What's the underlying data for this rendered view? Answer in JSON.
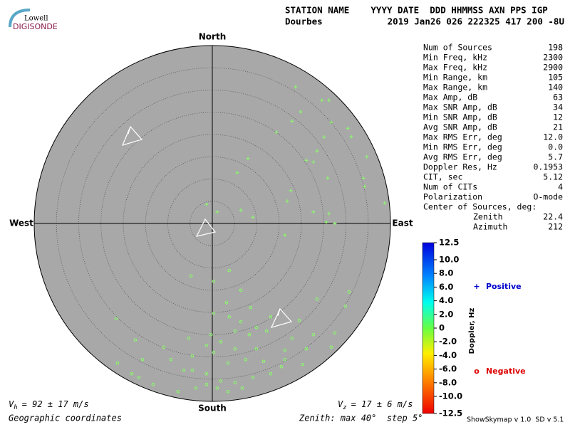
{
  "header": {
    "logo_top": "Lowell",
    "logo_bottom": "DIGISONDE",
    "columns": "STATION NAME    YYYY DATE  DDD HHMMSS AXN PPS IGP",
    "station": "Dourbes",
    "values": "2019 Jan26 026 222325 417 200 -8U"
  },
  "stats": [
    [
      "Num of Sources",
      "198"
    ],
    [
      "Min Freq, kHz",
      "2300"
    ],
    [
      "Max Freq, kHz",
      "2900"
    ],
    [
      "Min Range, km",
      "105"
    ],
    [
      "Max Range, km",
      "140"
    ],
    [
      "Max Amp, dB",
      "63"
    ],
    [
      "Max SNR Amp, dB",
      "34"
    ],
    [
      "Min SNR Amp, dB",
      "12"
    ],
    [
      "Avg SNR Amp, dB",
      "21"
    ],
    [
      "Max RMS Err, deg",
      "12.0"
    ],
    [
      "Min RMS Err, deg",
      "0.0"
    ],
    [
      "Avg RMS Err, deg",
      "5.7"
    ],
    [
      "Doppler Res, Hz",
      "0.1953"
    ],
    [
      "CIT, sec",
      "5.12"
    ],
    [
      "Num of CITs",
      "4"
    ],
    [
      "Polarization",
      "O-mode"
    ]
  ],
  "center": {
    "title": "Center of Sources, deg:",
    "rows": [
      [
        "Zenith",
        "22.4"
      ],
      [
        "Azimuth",
        "212"
      ]
    ]
  },
  "footer": {
    "vh": {
      "symbol": "V",
      "sub": "h",
      "text": "= 92 ± 17 m/s"
    },
    "vz": {
      "symbol": "V",
      "sub": "z",
      "text": "= 17 ± 6 m/s"
    },
    "coordinates": "Geographic coordinates",
    "zenith": "Zenith: max 40°  step 5°",
    "version": "ShowSkymap v 1.0  SD v 5.1"
  },
  "chart_data": {
    "type": "skymap",
    "directions": {
      "north": "North",
      "south": "South",
      "west": "West",
      "east": "East"
    },
    "rlim": [
      0,
      40
    ],
    "rings": [
      5,
      10,
      15,
      20,
      25,
      30,
      35
    ],
    "point_color": "#88ff66",
    "series": [
      {
        "name": "Positive",
        "marker": "+",
        "color": "#0000cc",
        "x": [
          18.7,
          24.6,
          26.2,
          19.8,
          17.9,
          14.4,
          26.7,
          30.4,
          25.1,
          31.2,
          23.5,
          21.1,
          22.7,
          34.7,
          8.0,
          5.6,
          25.9,
          33.9,
          34.2,
          17.6,
          16.8,
          38.7,
          6.4,
          -1.3,
          1.1,
          9.1,
          22.7,
          26.2,
          25.6,
          27.5,
          16.3
        ],
        "values": [
          30.7,
          27.7,
          27.7,
          25.1,
          23.0,
          20.5,
          22.7,
          21.4,
          19.4,
          19.5,
          16.3,
          14.2,
          13.8,
          15.0,
          14.6,
          11.4,
          10.2,
          10.2,
          8.3,
          7.4,
          5.0,
          4.6,
          3.0,
          4.3,
          2.6,
          1.4,
          2.6,
          2.2,
          0.3,
          0.0,
          -2.6
        ]
      },
      {
        "name": "Negative",
        "marker": "o",
        "color": "#dd0000",
        "x": [
          -4.8,
          0.3,
          3.8,
          6.4,
          3.2,
          8.6,
          0.3,
          -21.6,
          3.8,
          6.4,
          13.1,
          19.5,
          29.9,
          30.7,
          23.5,
          9.9,
          5.1,
          -0.3,
          -5.3,
          -17.3,
          -10.9,
          -1.3,
          1.9,
          8.3,
          12.2,
          17.9,
          22.7,
          27.5,
          26.7,
          21.1,
          16.3,
          9.9,
          5.1,
          0.3,
          -4.5,
          -9.3,
          -15.7,
          -18.1,
          -13.3,
          -6.4,
          -1.3,
          3.5,
          7.5,
          11.5,
          16.3,
          20.3,
          1.9,
          5.1,
          9.1,
          13.1,
          15.5,
          -1.3,
          -7.7,
          3.5,
          -3.7,
          -16.5,
          -21.3,
          6.7,
          1.1,
          -4.5
        ],
        "values": [
          -11.8,
          -13.0,
          -10.6,
          -15.0,
          -17.8,
          -18.9,
          -20.2,
          -21.4,
          -21.0,
          -22.1,
          -21.0,
          -21.8,
          -18.6,
          -15.4,
          -17.0,
          -23.4,
          -24.2,
          -25.0,
          -25.8,
          -26.2,
          -27.8,
          -27.4,
          -26.6,
          -25.0,
          -24.2,
          -25.8,
          -25.0,
          -24.6,
          -27.8,
          -28.2,
          -28.5,
          -28.2,
          -28.2,
          -29.0,
          -29.8,
          -30.6,
          -30.6,
          -33.8,
          -36.2,
          -33.0,
          -33.8,
          -31.4,
          -30.6,
          -31.0,
          -30.6,
          -31.7,
          -35.4,
          -35.8,
          -34.6,
          -33.8,
          -32.2,
          -36.2,
          -37.8,
          -37.8,
          -37.0,
          -34.6,
          -31.4,
          -37.0,
          -37.0,
          -33.0
        ]
      }
    ],
    "colorbar": {
      "label": "Doppler, Hz",
      "lim": [
        -12.5,
        12.5
      ],
      "ticks": [
        12.5,
        {
          "value": 10,
          "label": "10.0"
        },
        {
          "value": 8,
          "label": "8.0"
        },
        {
          "value": 6,
          "label": "6.0"
        },
        {
          "value": 4,
          "label": "4.0"
        },
        {
          "value": 2,
          "label": "2.0"
        },
        0,
        {
          "value": -2,
          "label": "-2.0"
        },
        {
          "value": -4,
          "label": "-4.0"
        },
        {
          "value": -6,
          "label": "-6.0"
        },
        {
          "value": -8,
          "label": "-8.0"
        },
        {
          "value": -10,
          "label": "-10.0"
        },
        -12.5
      ]
    }
  }
}
